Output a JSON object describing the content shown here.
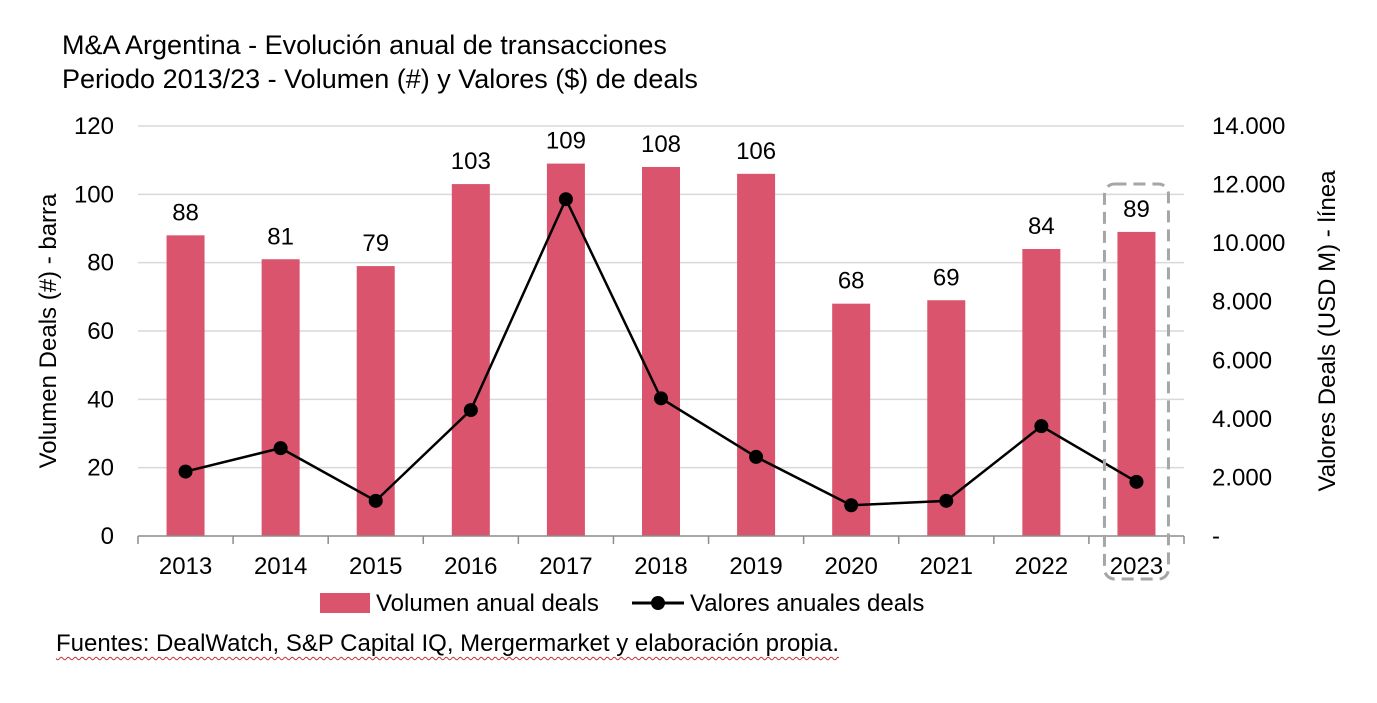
{
  "chart_data": {
    "type": "bar",
    "title": "M&A Argentina - Evolución anual de transacciones",
    "subtitle": "Periodo 2013/23 - Volumen (#) y Valores ($) de deals",
    "categories": [
      "2013",
      "2014",
      "2015",
      "2016",
      "2017",
      "2018",
      "2019",
      "2020",
      "2021",
      "2022",
      "2023"
    ],
    "series": [
      {
        "name": "Volumen anual deals",
        "kind": "bar",
        "axis": "left",
        "color": "#d9546c",
        "values": [
          88,
          81,
          79,
          103,
          109,
          108,
          106,
          68,
          69,
          84,
          89
        ],
        "data_labels": [
          "88",
          "81",
          "79",
          "103",
          "109",
          "108",
          "106",
          "68",
          "69",
          "84",
          "89"
        ]
      },
      {
        "name": "Valores anuales deals",
        "kind": "line",
        "axis": "right",
        "color": "#000000",
        "values": [
          2200,
          3000,
          1200,
          4300,
          11500,
          4700,
          2700,
          1050,
          1200,
          3750,
          1850
        ]
      }
    ],
    "ylabel": "Volumen Deals (#) - barra",
    "ylim": [
      0,
      120
    ],
    "yticks": [
      "0",
      "20",
      "40",
      "60",
      "80",
      "100",
      "120"
    ],
    "y2label": "Valores Deals (USD M) - línea",
    "y2lim": [
      0,
      14000
    ],
    "y2ticks": [
      "-",
      "2.000",
      "4.000",
      "6.000",
      "8.000",
      "10.000",
      "12.000",
      "14.000"
    ],
    "grid": true,
    "legend": "bottom",
    "highlight": "2023",
    "source": "Fuentes: DealWatch, S&P Capital IQ, Mergermarket y elaboración propia."
  }
}
